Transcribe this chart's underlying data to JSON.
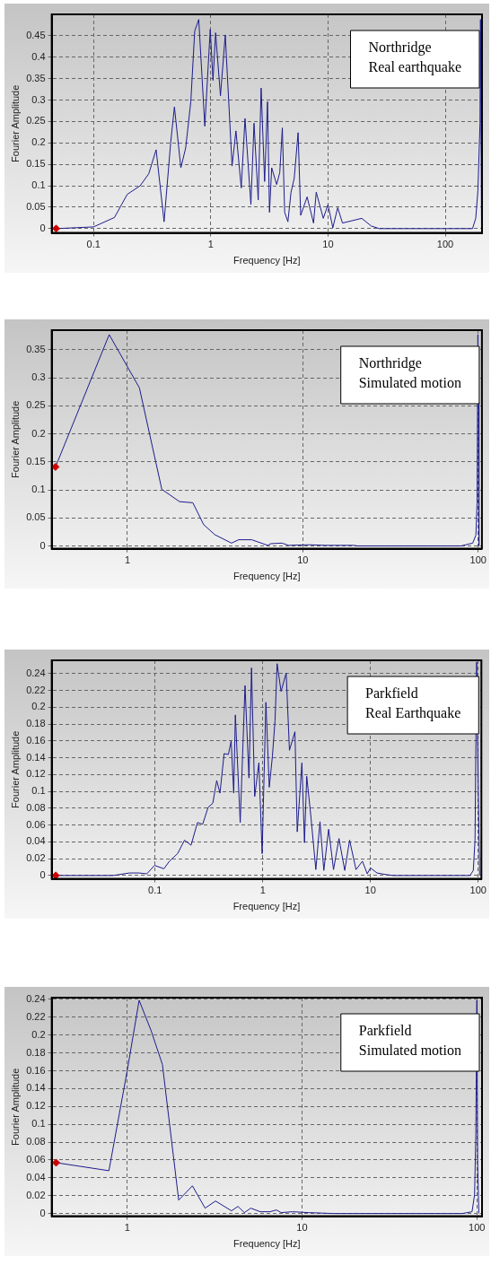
{
  "chart_data": [
    {
      "type": "line",
      "xlabel": "Frequency [Hz]",
      "ylabel": "Fourier Amplitude",
      "annotations": [
        "Northridge\nReal earthquake"
      ],
      "log": "x",
      "xlim": [
        0.044,
        206
      ],
      "xticks": [
        0.1,
        1,
        10,
        100
      ],
      "ylim": [
        -0.01,
        0.5
      ],
      "yticks": [
        0,
        0.05,
        0.1,
        0.15,
        0.2,
        0.25,
        0.3,
        0.35,
        0.4,
        0.45
      ],
      "grid": true,
      "series": [
        {
          "type": "line",
          "marker": "none",
          "color": "#1c1c8c",
          "x": [
            0.048,
            0.1,
            0.151,
            0.194,
            0.25,
            0.296,
            0.342,
            0.4,
            0.455,
            0.49,
            0.556,
            0.611,
            0.676,
            0.73,
            0.79,
            0.89,
            0.99,
            1.045,
            1.1,
            1.21,
            1.33,
            1.52,
            1.64,
            1.82,
            1.96,
            2.2,
            2.34,
            2.54,
            2.69,
            2.88,
            3.05,
            3.17,
            3.31,
            3.65,
            3.88,
            4.08,
            4.27,
            4.55,
            4.84,
            5.15,
            5.56,
            5.85,
            6.64,
            7.53,
            7.94,
            9.12,
            10,
            11,
            12.1,
            13.3,
            19.4,
            23.4,
            27.4,
            171,
            182,
            190,
            198,
            200,
            204
          ],
          "values": [
            0,
            0.004,
            0.026,
            0.08,
            0.1,
            0.128,
            0.184,
            0.016,
            0.2,
            0.284,
            0.142,
            0.188,
            0.296,
            0.461,
            0.488,
            0.239,
            0.465,
            0.346,
            0.457,
            0.31,
            0.452,
            0.146,
            0.228,
            0.095,
            0.257,
            0.056,
            0.246,
            0.067,
            0.328,
            0.11,
            0.296,
            0.038,
            0.142,
            0.103,
            0.131,
            0.235,
            0.038,
            0.016,
            0.085,
            0.117,
            0.224,
            0.031,
            0.074,
            0.013,
            0.085,
            0.024,
            0.056,
            0.002,
            0.049,
            0.013,
            0.024,
            0.006,
            0,
            0,
            0.024,
            0.088,
            0.246,
            0.488,
            0.002
          ]
        },
        {
          "type": "scatter",
          "marker": "diamond",
          "color": "#cc0000",
          "x": [
            0.048
          ],
          "values": [
            0
          ]
        }
      ]
    },
    {
      "type": "line",
      "xlabel": "Frequency [Hz]",
      "ylabel": "Fourier Amplitude",
      "annotations": [
        "Northridge\nSimulated motion"
      ],
      "log": "x",
      "xlim": [
        0.37,
        105
      ],
      "xticks": [
        1,
        10,
        100
      ],
      "ylim": [
        -0.005,
        0.385
      ],
      "yticks": [
        0,
        0.05,
        0.1,
        0.15,
        0.2,
        0.25,
        0.3,
        0.35
      ],
      "grid": true,
      "series": [
        {
          "type": "line",
          "marker": "none",
          "color": "#1c1c8c",
          "x": [
            0.389,
            0.787,
            1.17,
            1.57,
            1.98,
            2.36,
            2.72,
            3.15,
            3.92,
            4.31,
            5.11,
            6.3,
            6.58,
            7.61,
            8.28,
            10.9,
            13.4,
            19.6,
            20.4,
            80,
            93,
            97,
            98.5,
            99.6,
            100.3,
            101
          ],
          "values": [
            0.141,
            0.377,
            0.282,
            0.101,
            0.079,
            0.077,
            0.038,
            0.02,
            0.005,
            0.011,
            0.011,
            0.001,
            0.004,
            0.005,
            0.001,
            0.002,
            0.001,
            0.001,
            0,
            0,
            0.005,
            0.019,
            0.077,
            0.377,
            0.257,
            0
          ]
        },
        {
          "type": "scatter",
          "marker": "diamond",
          "color": "#cc0000",
          "x": [
            0.389
          ],
          "values": [
            0.141
          ]
        }
      ]
    },
    {
      "type": "line",
      "xlabel": "Frequency [Hz]",
      "ylabel": "Fourier Amplitude",
      "annotations": [
        "Parkfield\nReal Earthquake"
      ],
      "log": "x",
      "xlim": [
        0.011,
        107
      ],
      "xticks": [
        0.1,
        1,
        10,
        100
      ],
      "ylim": [
        -0.004,
        0.256
      ],
      "yticks": [
        0,
        0.02,
        0.04,
        0.06,
        0.08,
        0.1,
        0.12,
        0.14,
        0.16,
        0.18,
        0.2,
        0.22,
        0.24
      ],
      "grid": true,
      "series": [
        {
          "type": "line",
          "marker": "none",
          "color": "#1c1c8c",
          "x": [
            0.012,
            0.041,
            0.058,
            0.071,
            0.084,
            0.099,
            0.121,
            0.136,
            0.162,
            0.188,
            0.216,
            0.248,
            0.277,
            0.311,
            0.344,
            0.374,
            0.401,
            0.438,
            0.48,
            0.509,
            0.538,
            0.557,
            0.618,
            0.685,
            0.745,
            0.787,
            0.842,
            0.921,
            0.987,
            1.07,
            1.15,
            1.23,
            1.3,
            1.36,
            1.48,
            1.65,
            1.77,
            1.99,
            2.09,
            2.31,
            2.44,
            2.56,
            2.81,
            3.11,
            3.4,
            3.69,
            4.09,
            4.54,
            5.1,
            5.77,
            6.4,
            7.34,
            8.42,
            9.33,
            10,
            11.5,
            14.1,
            16.2,
            84,
            90,
            93.4,
            96.7,
            100,
            103
          ],
          "values": [
            0,
            0,
            0.003,
            0.003,
            0.002,
            0.012,
            0.008,
            0.017,
            0.026,
            0.042,
            0.036,
            0.063,
            0.061,
            0.081,
            0.086,
            0.113,
            0.098,
            0.145,
            0.144,
            0.16,
            0.098,
            0.191,
            0.063,
            0.226,
            0.116,
            0.247,
            0.094,
            0.134,
            0.026,
            0.206,
            0.105,
            0.142,
            0.184,
            0.252,
            0.219,
            0.241,
            0.149,
            0.171,
            0.052,
            0.134,
            0.039,
            0.118,
            0.068,
            0.007,
            0.064,
            0.006,
            0.055,
            0.007,
            0.044,
            0.006,
            0.042,
            0.007,
            0.017,
            0.002,
            0.009,
            0.003,
            0.001,
            0,
            0,
            0.006,
            0.042,
            0.254,
            0.109,
            0
          ]
        },
        {
          "type": "scatter",
          "marker": "diamond",
          "color": "#cc0000",
          "x": [
            0.012
          ],
          "values": [
            0
          ]
        }
      ]
    },
    {
      "type": "line",
      "xlabel": "Frequency [Hz]",
      "ylabel": "Fourier Amplitude",
      "annotations": [
        "Parkfield\nSimulated motion"
      ],
      "log": "x",
      "xlim": [
        0.37,
        107
      ],
      "xticks": [
        1,
        10,
        100
      ],
      "ylim": [
        -0.003,
        0.242
      ],
      "yticks": [
        0,
        0.02,
        0.04,
        0.06,
        0.08,
        0.1,
        0.12,
        0.14,
        0.16,
        0.18,
        0.2,
        0.22,
        0.24
      ],
      "grid": true,
      "series": [
        {
          "type": "line",
          "marker": "none",
          "color": "#1c1c8c",
          "x": [
            0.392,
            0.786,
            1,
            1.17,
            1.37,
            1.59,
            1.97,
            2.36,
            2.79,
            3.2,
            3.95,
            4.3,
            4.68,
            5.09,
            5.77,
            6.56,
            7.13,
            7.6,
            8.8,
            10.9,
            15.2,
            82.6,
            93.8,
            97,
            98.6,
            100,
            101,
            102.6
          ],
          "values": [
            0.057,
            0.048,
            0.16,
            0.239,
            0.205,
            0.167,
            0.015,
            0.031,
            0.006,
            0.014,
            0.003,
            0.008,
            0.001,
            0.006,
            0.002,
            0.002,
            0.004,
            0.001,
            0.002,
            0.001,
            0,
            0,
            0.002,
            0.021,
            0.087,
            0.239,
            0.056,
            0
          ]
        },
        {
          "type": "scatter",
          "marker": "diamond",
          "color": "#cc0000",
          "x": [
            0.392
          ],
          "values": [
            0.057
          ]
        }
      ]
    }
  ]
}
